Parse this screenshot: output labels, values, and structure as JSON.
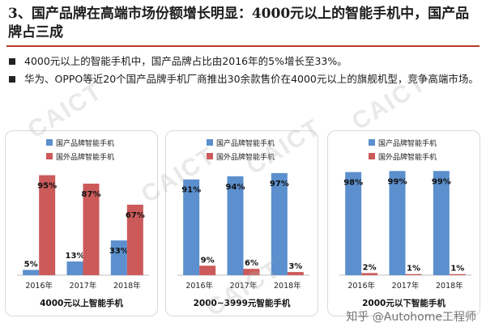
{
  "title": "3、国产品牌在高端市场份额增长明显：4000元以上的智能手机中，国产品牌占三成",
  "bullets": [
    "4000元以上的智能手机中，国产品牌占比由2016年的5%增长至33%。",
    "华为、OPPO等近20个国产品牌手机厂商推出30余款售价在4000元以上的旗舰机型，竞争高端市场。"
  ],
  "watermark": "CAICT",
  "footer_watermark": "知乎 @Autohome工程师",
  "colors": {
    "domestic": "#5b8fcd",
    "foreign": "#cc5a5a",
    "rule": "#c0392b"
  },
  "chart_data": [
    {
      "type": "bar",
      "title": "4000元以上智能手机",
      "categories": [
        "2016年",
        "2017年",
        "2018年"
      ],
      "series": [
        {
          "name": "国产品牌智能手机",
          "values": [
            5,
            13,
            33
          ]
        },
        {
          "name": "国外品牌智能手机",
          "values": [
            95,
            87,
            67
          ]
        }
      ],
      "data_labels": true,
      "ylim": [
        0,
        100
      ]
    },
    {
      "type": "bar",
      "title": "2000~3999元智能手机",
      "categories": [
        "2016年",
        "2017年",
        "2018年"
      ],
      "series": [
        {
          "name": "国产品牌智能手机",
          "values": [
            91,
            94,
            97
          ]
        },
        {
          "name": "国外品牌智能手机",
          "values": [
            9,
            6,
            3
          ]
        }
      ],
      "data_labels": true,
      "ylim": [
        0,
        100
      ]
    },
    {
      "type": "bar",
      "title": "2000元以下智能手机",
      "categories": [
        "2016年",
        "2017年",
        "2018年"
      ],
      "series": [
        {
          "name": "国产品牌智能手机",
          "values": [
            98,
            99,
            99
          ]
        },
        {
          "name": "国外品牌智能手机",
          "values": [
            2,
            1,
            1
          ]
        }
      ],
      "data_labels": true,
      "ylim": [
        0,
        100
      ]
    }
  ]
}
